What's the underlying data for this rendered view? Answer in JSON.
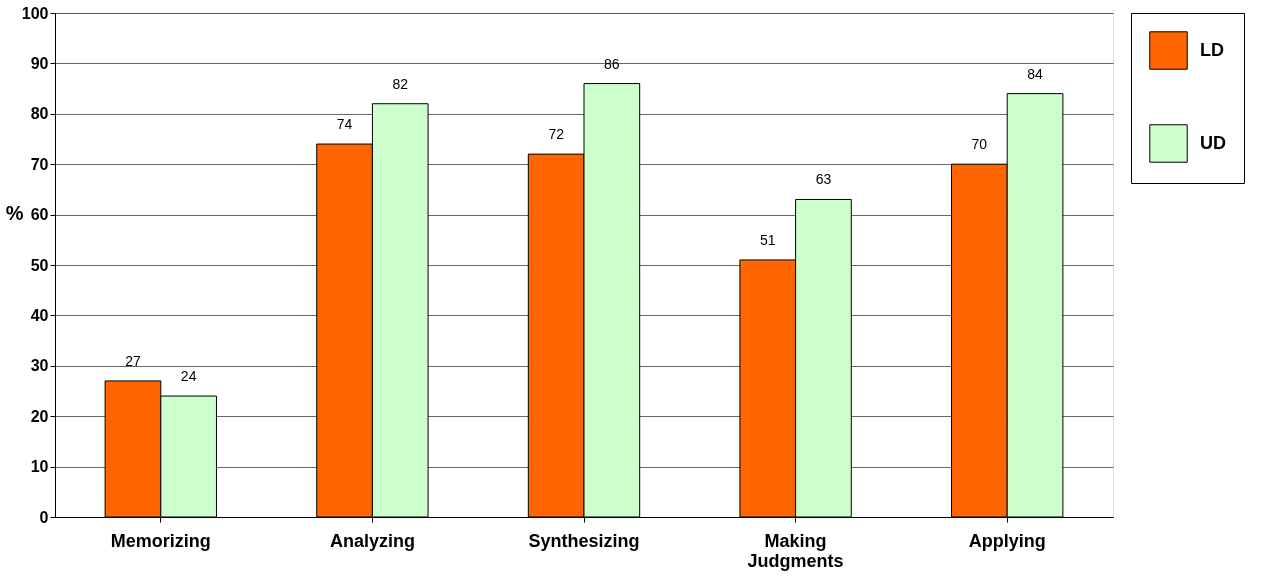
{
  "chart_data": {
    "type": "bar",
    "ylabel": "%",
    "categories": [
      "Memorizing",
      "Analyzing",
      "Synthesizing",
      "Making Judgments",
      "Applying"
    ],
    "series": [
      {
        "name": "LD",
        "color": "#ff6600",
        "values": [
          27,
          74,
          72,
          51,
          70
        ]
      },
      {
        "name": "UD",
        "color": "#ccffcc",
        "values": [
          24,
          82,
          86,
          63,
          84
        ]
      }
    ],
    "ylim": [
      0,
      100
    ],
    "yticks": [
      0,
      10,
      20,
      30,
      40,
      50,
      60,
      70,
      80,
      90,
      100
    ],
    "grid": "y",
    "legend": "right",
    "data_labels": true
  }
}
